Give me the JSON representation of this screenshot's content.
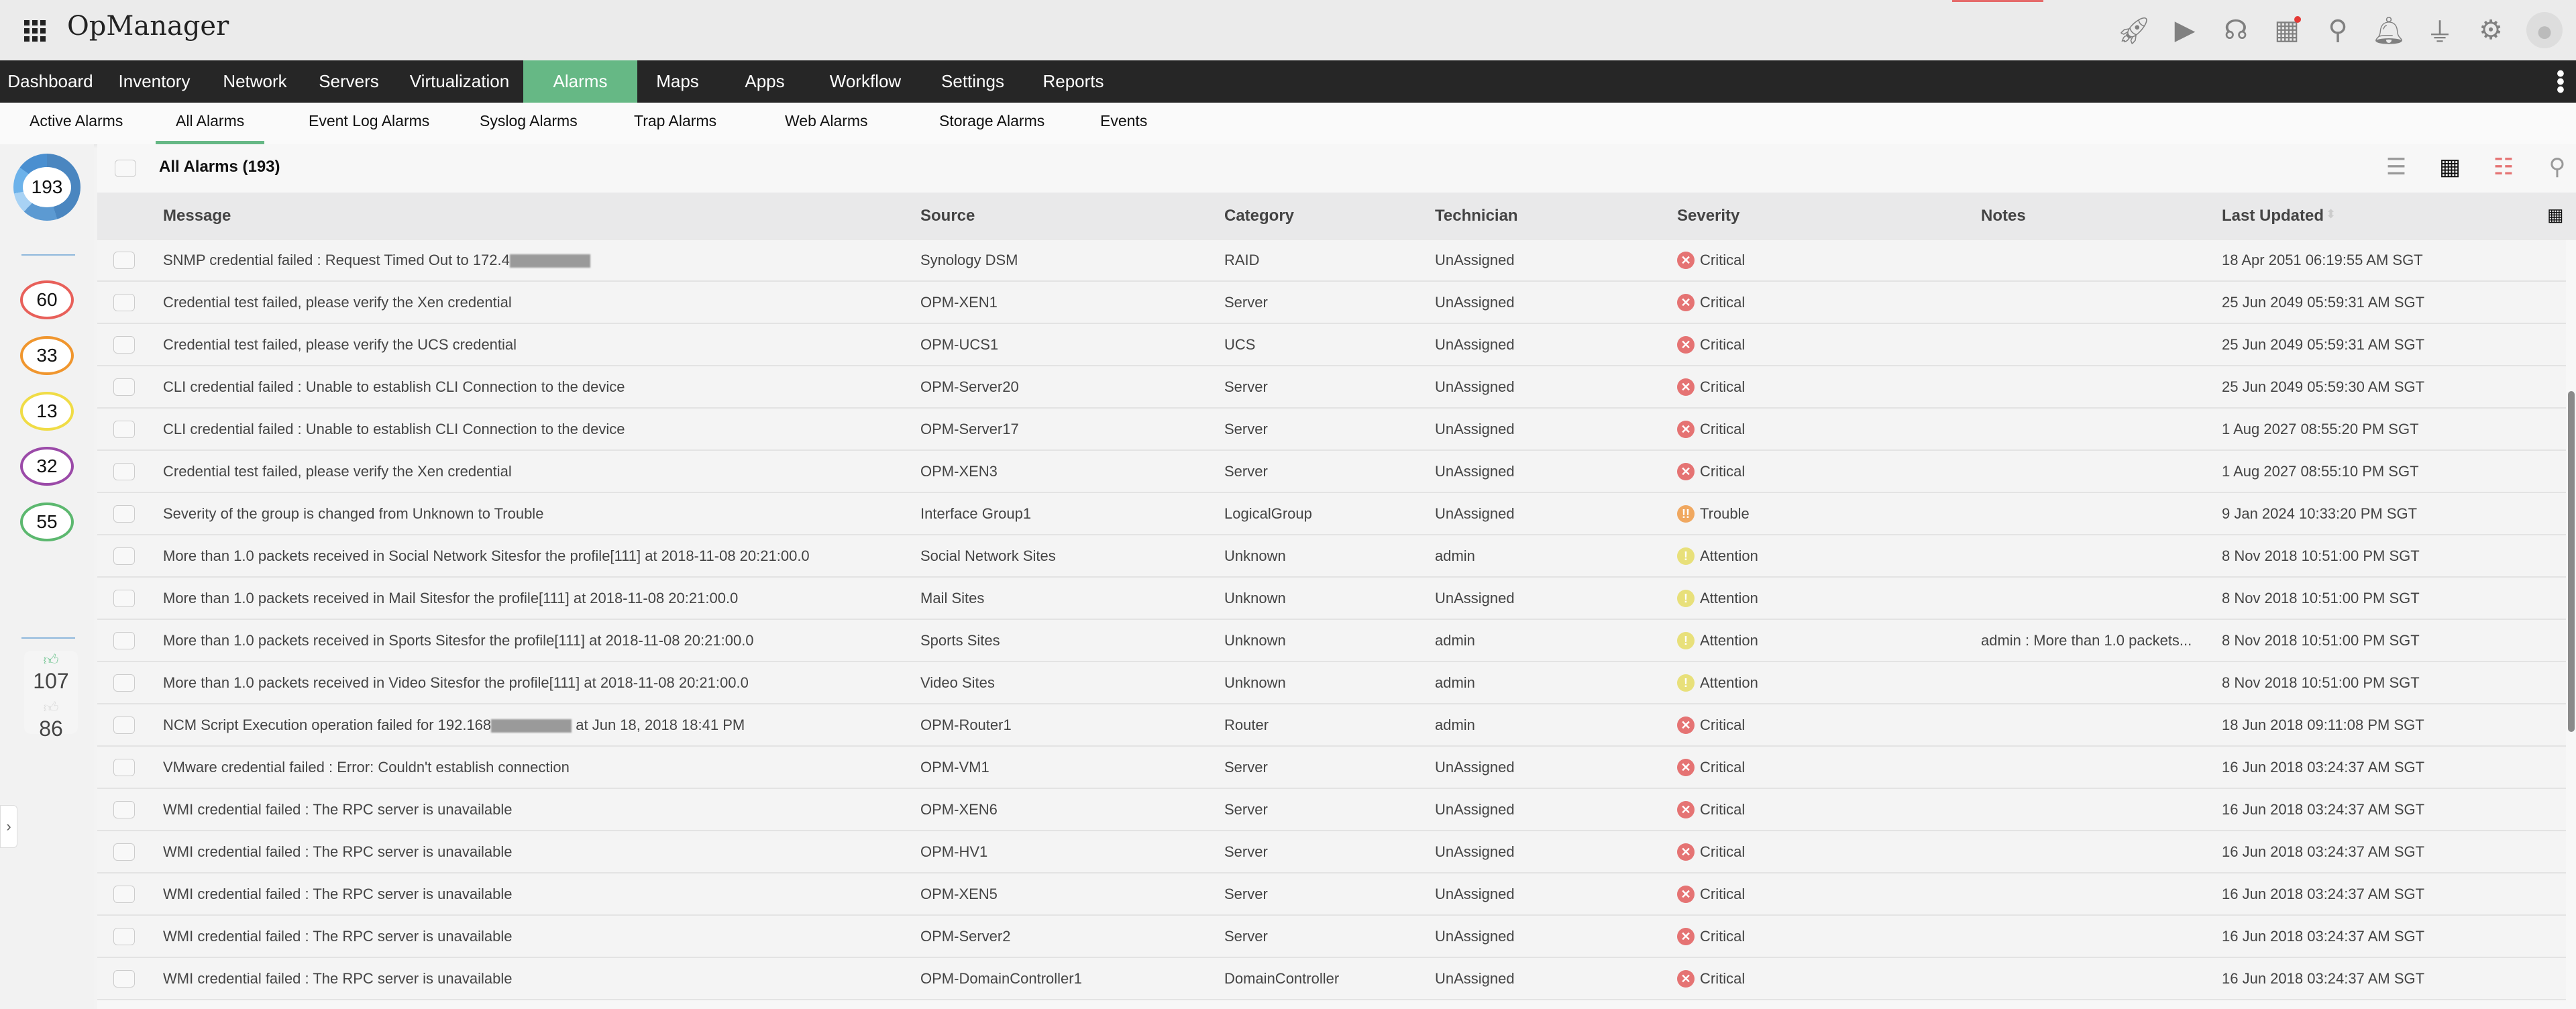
{
  "app": {
    "title": "OpManager"
  },
  "header_icons": [
    "rocket-icon",
    "presentation-icon",
    "headset-icon",
    "gift-icon",
    "search-icon",
    "bell-icon",
    "plug-icon",
    "gear-icon",
    "user-avatar-icon"
  ],
  "nav": [
    "Dashboard",
    "Inventory",
    "Network",
    "Servers",
    "Virtualization",
    "Alarms",
    "Maps",
    "Apps",
    "Workflow",
    "Settings",
    "Reports"
  ],
  "nav_active": "Alarms",
  "subnav": [
    "Active Alarms",
    "All Alarms",
    "Event Log Alarms",
    "Syslog Alarms",
    "Trap Alarms",
    "Web Alarms",
    "Storage Alarms",
    "Events"
  ],
  "subnav_active": "All Alarms",
  "sidebar": {
    "total": "193",
    "counts": [
      {
        "value": "60",
        "color": "#e8605a"
      },
      {
        "value": "33",
        "color": "#f0962e"
      },
      {
        "value": "13",
        "color": "#f0dc46"
      },
      {
        "value": "32",
        "color": "#9b4aa8"
      },
      {
        "value": "55",
        "color": "#5cb86f"
      }
    ],
    "acknowledged": "107",
    "unacknowledged": "86"
  },
  "toolbar": {
    "title": "All Alarms (193)"
  },
  "columns": [
    "Message",
    "Source",
    "Category",
    "Technician",
    "Severity",
    "Notes",
    "Last Updated"
  ],
  "severity_colors": {
    "Critical": "#e57373",
    "Trouble": "#f0a860",
    "Attention": "#e8e07a"
  },
  "rows": [
    {
      "message": "SNMP credential failed : Request Timed Out to 172.4",
      "redacted": true,
      "message_suffix": "",
      "source": "Synology DSM",
      "category": "RAID",
      "technician": "UnAssigned",
      "severity": "Critical",
      "notes": "",
      "updated": "18 Apr 2051 06:19:55 AM SGT"
    },
    {
      "message": "Credential test failed, please verify the Xen credential",
      "source": "OPM-XEN1",
      "category": "Server",
      "technician": "UnAssigned",
      "severity": "Critical",
      "notes": "",
      "updated": "25 Jun 2049 05:59:31 AM SGT"
    },
    {
      "message": "Credential test failed, please verify the UCS credential",
      "source": "OPM-UCS1",
      "category": "UCS",
      "technician": "UnAssigned",
      "severity": "Critical",
      "notes": "",
      "updated": "25 Jun 2049 05:59:31 AM SGT"
    },
    {
      "message": "CLI credential failed : Unable to establish CLI Connection to the device",
      "source": "OPM-Server20",
      "category": "Server",
      "technician": "UnAssigned",
      "severity": "Critical",
      "notes": "",
      "updated": "25 Jun 2049 05:59:30 AM SGT"
    },
    {
      "message": "CLI credential failed : Unable to establish CLI Connection to the device",
      "source": "OPM-Server17",
      "category": "Server",
      "technician": "UnAssigned",
      "severity": "Critical",
      "notes": "",
      "updated": "1 Aug 2027 08:55:20 PM SGT"
    },
    {
      "message": "Credential test failed, please verify the Xen credential",
      "source": "OPM-XEN3",
      "category": "Server",
      "technician": "UnAssigned",
      "severity": "Critical",
      "notes": "",
      "updated": "1 Aug 2027 08:55:10 PM SGT"
    },
    {
      "message": "Severity of the group is changed from Unknown to Trouble",
      "source": "Interface Group1",
      "category": "LogicalGroup",
      "technician": "UnAssigned",
      "severity": "Trouble",
      "notes": "",
      "updated": "9 Jan 2024 10:33:20 PM SGT"
    },
    {
      "message": "More than 1.0 packets received in Social Network Sitesfor the profile[111] at 2018-11-08 20:21:00.0",
      "source": "Social Network Sites",
      "category": "Unknown",
      "technician": "admin",
      "severity": "Attention",
      "notes": "",
      "updated": "8 Nov 2018 10:51:00 PM SGT"
    },
    {
      "message": "More than 1.0 packets received in Mail Sitesfor the profile[111] at 2018-11-08 20:21:00.0",
      "source": "Mail Sites",
      "category": "Unknown",
      "technician": "UnAssigned",
      "severity": "Attention",
      "notes": "",
      "updated": "8 Nov 2018 10:51:00 PM SGT"
    },
    {
      "message": "More than 1.0 packets received in Sports Sitesfor the profile[111] at 2018-11-08 20:21:00.0",
      "source": "Sports Sites",
      "category": "Unknown",
      "technician": "admin",
      "severity": "Attention",
      "notes": "admin : More than 1.0 packets...",
      "updated": "8 Nov 2018 10:51:00 PM SGT"
    },
    {
      "message": "More than 1.0 packets received in Video Sitesfor the profile[111] at 2018-11-08 20:21:00.0",
      "source": "Video Sites",
      "category": "Unknown",
      "technician": "admin",
      "severity": "Attention",
      "notes": "",
      "updated": "8 Nov 2018 10:51:00 PM SGT"
    },
    {
      "message": "NCM Script Execution operation failed for 192.168",
      "redacted": true,
      "message_suffix": " at Jun 18, 2018 18:41 PM",
      "source": "OPM-Router1",
      "category": "Router",
      "technician": "admin",
      "severity": "Critical",
      "notes": "",
      "updated": "18 Jun 2018 09:11:08 PM SGT"
    },
    {
      "message": "VMware credential failed : Error: Couldn't establish connection",
      "source": "OPM-VM1",
      "category": "Server",
      "technician": "UnAssigned",
      "severity": "Critical",
      "notes": "",
      "updated": "16 Jun 2018 03:24:37 AM SGT"
    },
    {
      "message": "WMI credential failed : The RPC server is unavailable",
      "source": "OPM-XEN6",
      "category": "Server",
      "technician": "UnAssigned",
      "severity": "Critical",
      "notes": "",
      "updated": "16 Jun 2018 03:24:37 AM SGT"
    },
    {
      "message": "WMI credential failed : The RPC server is unavailable",
      "source": "OPM-HV1",
      "category": "Server",
      "technician": "UnAssigned",
      "severity": "Critical",
      "notes": "",
      "updated": "16 Jun 2018 03:24:37 AM SGT"
    },
    {
      "message": "WMI credential failed : The RPC server is unavailable",
      "source": "OPM-XEN5",
      "category": "Server",
      "technician": "UnAssigned",
      "severity": "Critical",
      "notes": "",
      "updated": "16 Jun 2018 03:24:37 AM SGT"
    },
    {
      "message": "WMI credential failed : The RPC server is unavailable",
      "source": "OPM-Server2",
      "category": "Server",
      "technician": "UnAssigned",
      "severity": "Critical",
      "notes": "",
      "updated": "16 Jun 2018 03:24:37 AM SGT"
    },
    {
      "message": "WMI credential failed : The RPC server is unavailable",
      "source": "OPM-DomainController1",
      "category": "DomainController",
      "technician": "UnAssigned",
      "severity": "Critical",
      "notes": "",
      "updated": "16 Jun 2018 03:24:37 AM SGT"
    }
  ]
}
